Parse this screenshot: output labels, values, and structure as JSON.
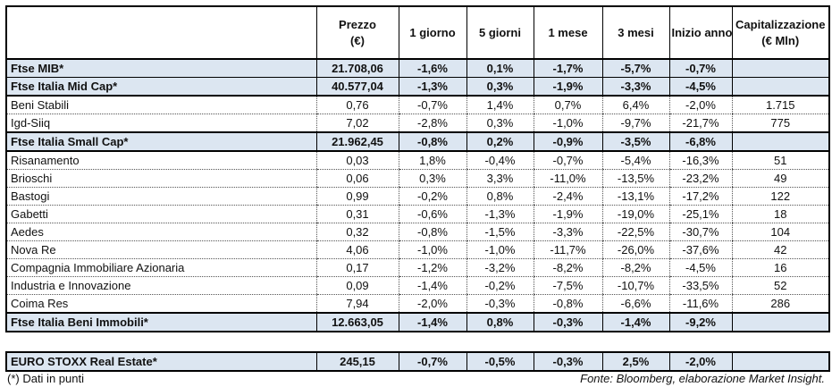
{
  "headers": [
    "",
    "Prezzo\n(€)",
    "1 giorno",
    "5 giorni",
    "1 mese",
    "3 mesi",
    "Inizio anno",
    "Capitalizzazione\n(€ Mln)"
  ],
  "header_lines": {
    "prezzo": [
      "Prezzo",
      "(€)"
    ],
    "cap": [
      "Capitalizzazione",
      "(€ Mln)"
    ]
  },
  "rows": [
    {
      "name": "Ftse MIB*",
      "prezzo": "21.708,06",
      "g1": "-1,6%",
      "g5": "0,1%",
      "m1": "-1,7%",
      "m3": "-5,7%",
      "ytd": "-0,7%",
      "cap": "",
      "bold": true
    },
    {
      "name": "Ftse Italia Mid Cap*",
      "prezzo": "40.577,04",
      "g1": "-1,3%",
      "g5": "0,3%",
      "m1": "-1,9%",
      "m3": "-3,3%",
      "ytd": "-4,5%",
      "cap": "",
      "bold": true
    },
    {
      "name": "Beni Stabili",
      "prezzo": "0,76",
      "g1": "-0,7%",
      "g5": "1,4%",
      "m1": "0,7%",
      "m3": "6,4%",
      "ytd": "-2,0%",
      "cap": "1.715"
    },
    {
      "name": "Igd-Siiq",
      "prezzo": "7,02",
      "g1": "-2,8%",
      "g5": "0,3%",
      "m1": "-1,0%",
      "m3": "-9,7%",
      "ytd": "-21,7%",
      "cap": "775"
    },
    {
      "name": "Ftse Italia Small Cap*",
      "prezzo": "21.962,45",
      "g1": "-0,8%",
      "g5": "0,2%",
      "m1": "-0,9%",
      "m3": "-3,5%",
      "ytd": "-6,8%",
      "cap": "",
      "bold": true
    },
    {
      "name": "Risanamento",
      "prezzo": "0,03",
      "g1": "1,8%",
      "g5": "-0,4%",
      "m1": "-0,7%",
      "m3": "-5,4%",
      "ytd": "-16,3%",
      "cap": "51"
    },
    {
      "name": "Brioschi",
      "prezzo": "0,06",
      "g1": "0,3%",
      "g5": "3,3%",
      "m1": "-11,0%",
      "m3": "-13,5%",
      "ytd": "-23,2%",
      "cap": "49"
    },
    {
      "name": "Bastogi",
      "prezzo": "0,99",
      "g1": "-0,2%",
      "g5": "0,8%",
      "m1": "-2,4%",
      "m3": "-13,1%",
      "ytd": "-17,2%",
      "cap": "122"
    },
    {
      "name": "Gabetti",
      "prezzo": "0,31",
      "g1": "-0,6%",
      "g5": "-1,3%",
      "m1": "-1,9%",
      "m3": "-19,0%",
      "ytd": "-25,1%",
      "cap": "18"
    },
    {
      "name": "Aedes",
      "prezzo": "0,32",
      "g1": "-0,8%",
      "g5": "-1,5%",
      "m1": "-3,3%",
      "m3": "-22,5%",
      "ytd": "-30,7%",
      "cap": "104"
    },
    {
      "name": "Nova Re",
      "prezzo": "4,06",
      "g1": "-1,0%",
      "g5": "-1,0%",
      "m1": "-11,7%",
      "m3": "-26,0%",
      "ytd": "-37,6%",
      "cap": "42"
    },
    {
      "name": "Compagnia Immobiliare Azionaria",
      "prezzo": "0,17",
      "g1": "-1,2%",
      "g5": "-3,2%",
      "m1": "-8,2%",
      "m3": "-8,2%",
      "ytd": "-4,5%",
      "cap": "16"
    },
    {
      "name": "Industria e Innovazione",
      "prezzo": "0,09",
      "g1": "-1,4%",
      "g5": "-0,2%",
      "m1": "-7,5%",
      "m3": "-10,7%",
      "ytd": "-33,5%",
      "cap": "52"
    },
    {
      "name": "Coima Res",
      "prezzo": "7,94",
      "g1": "-2,0%",
      "g5": "-0,3%",
      "m1": "-0,8%",
      "m3": "-6,6%",
      "ytd": "-11,6%",
      "cap": "286"
    },
    {
      "name": "Ftse Italia Beni Immobili*",
      "prezzo": "12.663,05",
      "g1": "-1,4%",
      "g5": "0,8%",
      "m1": "-0,3%",
      "m3": "-1,4%",
      "ytd": "-9,2%",
      "cap": "",
      "bold": true
    }
  ],
  "euro_row": {
    "name": "EURO STOXX Real Estate*",
    "prezzo": "245,15",
    "g1": "-0,7%",
    "g5": "-0,5%",
    "m1": "-0,3%",
    "m3": "2,5%",
    "ytd": "-2,0%",
    "cap": ""
  },
  "footnote": "(*) Dati in punti",
  "source": "Fonte: Bloomberg, elaborazione Market Insight.",
  "colors": {
    "highlight_row": "#dce6f1",
    "border": "#000000"
  }
}
